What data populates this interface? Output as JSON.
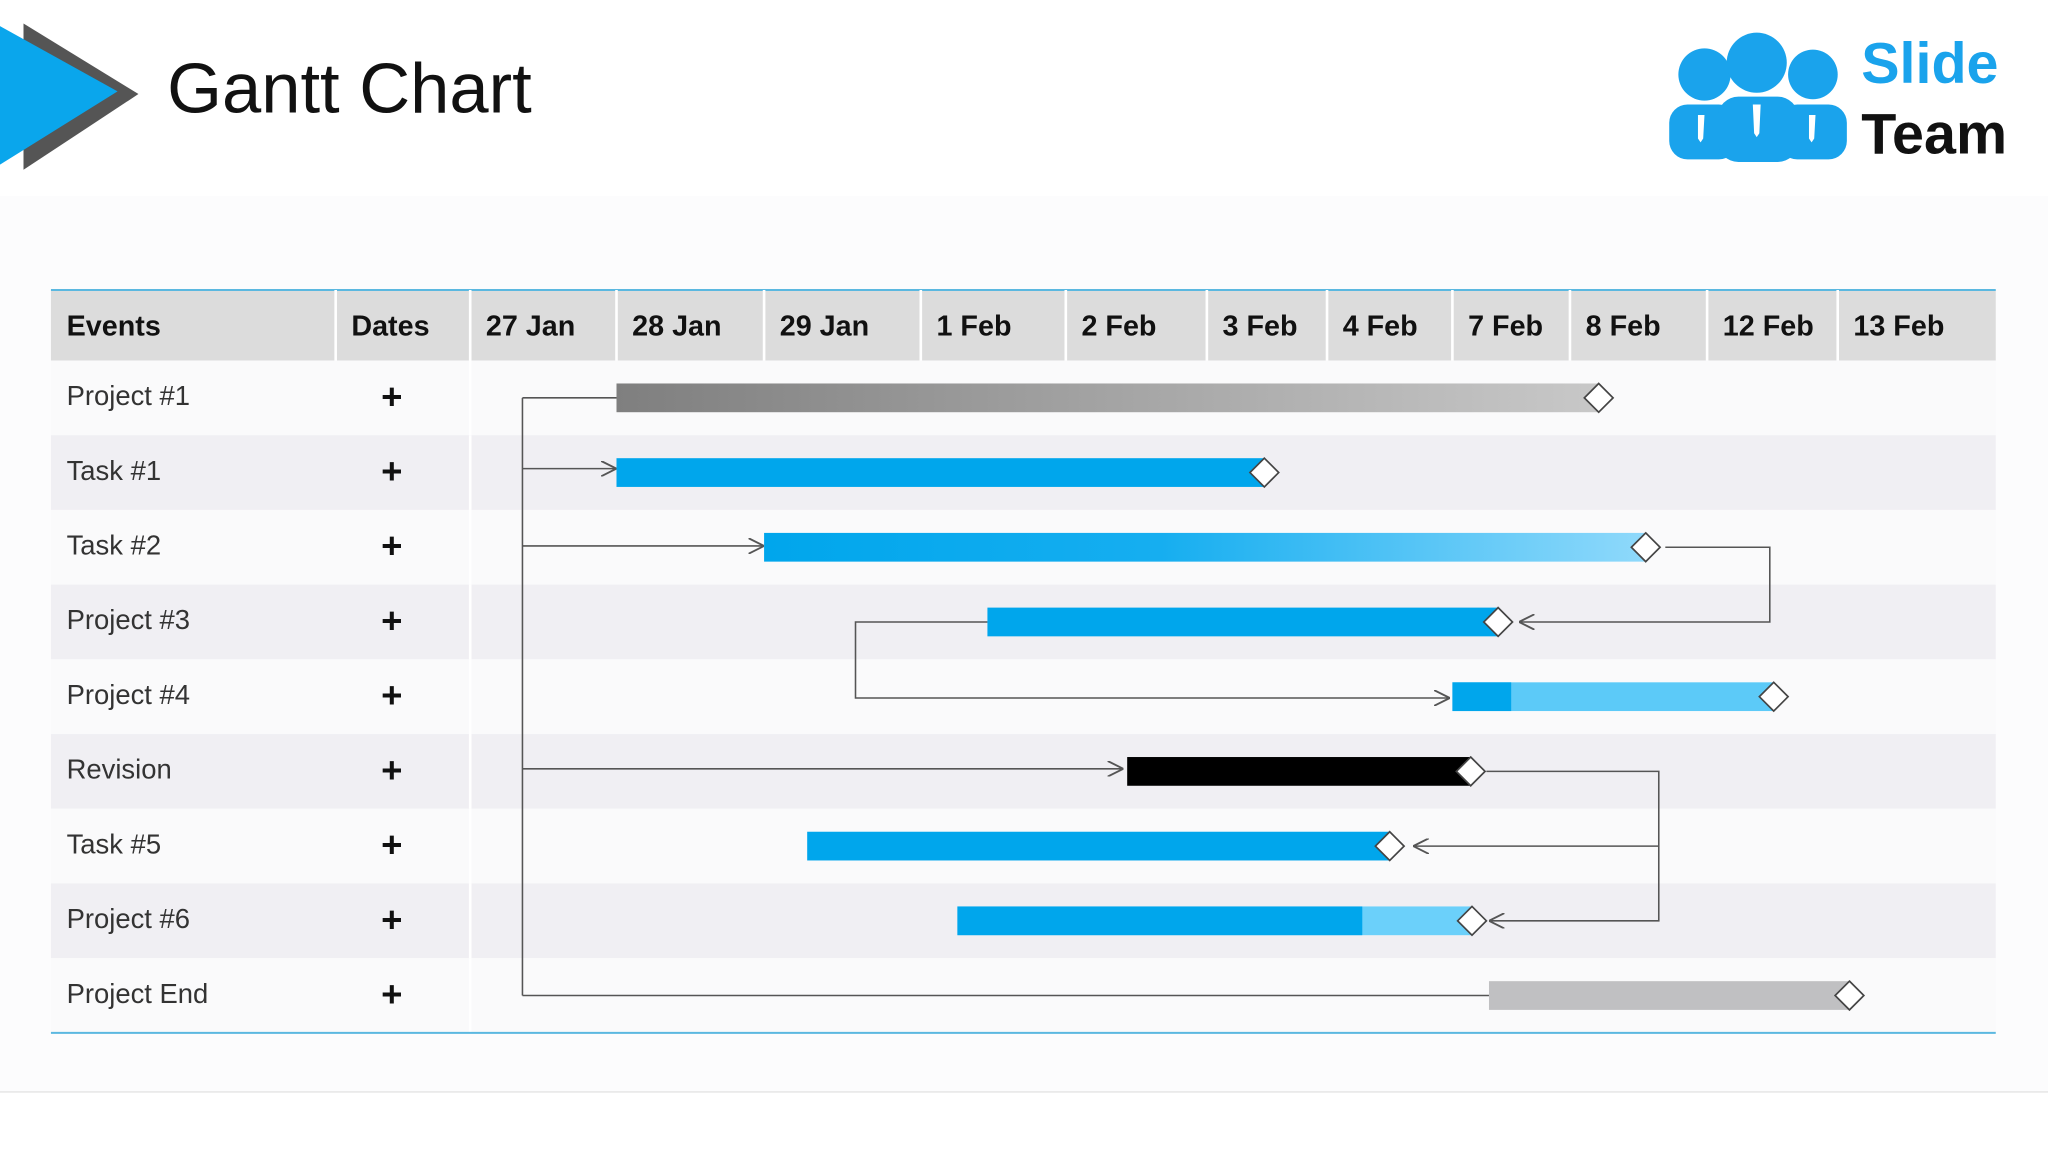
{
  "header": {
    "title": "Gantt Chart",
    "logo": {
      "line1": "Slide",
      "line2": "Team"
    }
  },
  "table": {
    "columns": [
      "Events",
      "Dates",
      "27 Jan",
      "28 Jan",
      "29 Jan",
      "1 Feb",
      "2 Feb",
      "3 Feb",
      "4 Feb",
      "7 Feb",
      "8 Feb",
      "12 Feb",
      "13 Feb"
    ],
    "rows": [
      {
        "event": "Project #1",
        "date": "+"
      },
      {
        "event": "Task #1",
        "date": "+"
      },
      {
        "event": "Task #2",
        "date": "+"
      },
      {
        "event": "Project #3",
        "date": "+"
      },
      {
        "event": "Project #4",
        "date": "+"
      },
      {
        "event": "Revision",
        "date": "+"
      },
      {
        "event": "Task #5",
        "date": "+"
      },
      {
        "event": "Project #6",
        "date": "+"
      },
      {
        "event": "Project End",
        "date": "+"
      }
    ]
  }
}
